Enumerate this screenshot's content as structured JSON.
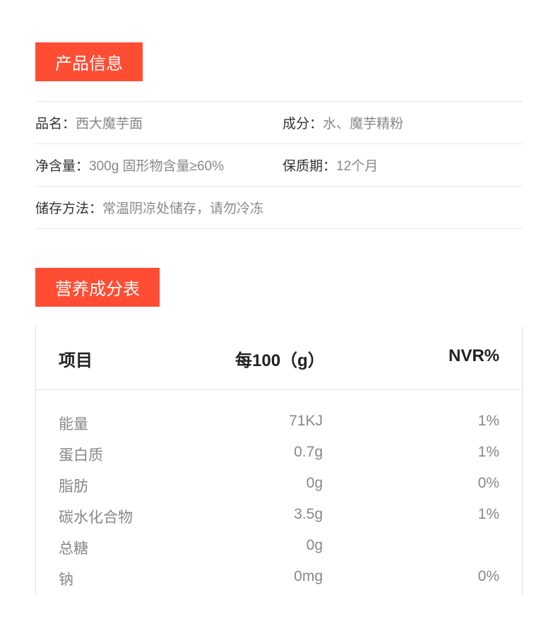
{
  "colors": {
    "header_bg": "#ff4d33",
    "header_text": "#ffffff",
    "label_text": "#333333",
    "value_text": "#888888",
    "table_header_text": "#222222",
    "divider": "#e8e8e8",
    "table_border": "#dddddd",
    "page_bg": "#ffffff"
  },
  "typography": {
    "header_fontsize": 24,
    "info_fontsize": 19,
    "table_header_fontsize": 24,
    "table_body_fontsize": 21
  },
  "product_info": {
    "header": "产品信息",
    "rows": [
      {
        "left_label": "品名：",
        "left_value": "西大魔芋面",
        "right_label": "成分：",
        "right_value": "水、魔芋精粉"
      },
      {
        "left_label": "净含量：",
        "left_value": "300g  固形物含量≥60%",
        "right_label": "保质期：",
        "right_value": "12个月"
      },
      {
        "left_label": "储存方法：",
        "left_value": "常温阴凉处储存，请勿冷冻",
        "right_label": "",
        "right_value": ""
      }
    ]
  },
  "nutrition": {
    "header": "营养成分表",
    "columns": {
      "item": "项目",
      "per100": "每100（g）",
      "nvr": "NVR%"
    },
    "rows": [
      {
        "item": "能量",
        "per100": "71KJ",
        "nvr": "1%"
      },
      {
        "item": "蛋白质",
        "per100": "0.7g",
        "nvr": "1%"
      },
      {
        "item": "脂肪",
        "per100": "0g",
        "nvr": "0%"
      },
      {
        "item": "碳水化合物",
        "per100": "3.5g",
        "nvr": "1%"
      },
      {
        "item": "总糖",
        "per100": "0g",
        "nvr": ""
      },
      {
        "item": "钠",
        "per100": "0mg",
        "nvr": "0%"
      }
    ]
  }
}
